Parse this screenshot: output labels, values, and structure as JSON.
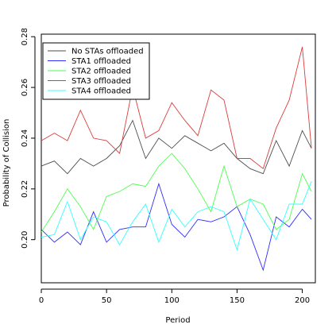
{
  "chart_data": {
    "type": "line",
    "xlabel": "Period",
    "ylabel": "Probability of Collision",
    "xlim": [
      0,
      210
    ],
    "ylim": [
      0.183,
      0.281
    ],
    "xticks": [
      0,
      50,
      100,
      150,
      200
    ],
    "yticks": [
      0.2,
      0.22,
      0.24,
      0.26,
      0.28
    ],
    "xtick_labels": [
      "0",
      "50",
      "100",
      "150",
      "200"
    ],
    "ytick_labels": [
      "0.20",
      "0.22",
      "0.24",
      "0.26",
      "0.28"
    ],
    "grid": false,
    "legend_position": "top-left",
    "x": [
      0,
      10,
      20,
      30,
      40,
      50,
      60,
      70,
      80,
      90,
      100,
      110,
      120,
      130,
      140,
      150,
      160,
      170,
      180,
      190,
      200,
      207
    ],
    "series": [
      {
        "name": "No STAs offloaded",
        "color": "#4d4d4d",
        "values": [
          0.229,
          0.231,
          0.226,
          0.232,
          0.229,
          0.232,
          0.237,
          0.247,
          0.232,
          0.24,
          0.236,
          0.241,
          0.238,
          0.235,
          0.238,
          0.232,
          0.228,
          0.226,
          0.239,
          0.229,
          0.243,
          0.236
        ]
      },
      {
        "name": "STA1 offloaded",
        "color": "#2d2dff",
        "values": [
          0.204,
          0.199,
          0.203,
          0.198,
          0.211,
          0.199,
          0.204,
          0.205,
          0.205,
          0.222,
          0.206,
          0.201,
          0.208,
          0.207,
          0.209,
          0.213,
          0.202,
          0.188,
          0.209,
          0.205,
          0.212,
          0.208
        ]
      },
      {
        "name": "STA2 offloaded",
        "color": "#4dff4d",
        "values": [
          0.203,
          0.211,
          0.22,
          0.213,
          0.204,
          0.217,
          0.219,
          0.222,
          0.221,
          0.229,
          0.234,
          0.228,
          0.22,
          0.211,
          0.229,
          0.213,
          0.216,
          0.214,
          0.204,
          0.208,
          0.226,
          0.219
        ]
      },
      {
        "name": "STA3 offloaded",
        "color": "#dd3b3b",
        "values": [
          0.239,
          0.242,
          0.239,
          0.251,
          0.24,
          0.239,
          0.234,
          0.26,
          0.24,
          0.243,
          0.254,
          0.247,
          0.241,
          0.259,
          0.255,
          0.232,
          0.232,
          0.228,
          0.244,
          0.255,
          0.276,
          0.236
        ]
      },
      {
        "name": "STA4 offloaded",
        "color": "#33ffff",
        "values": [
          0.201,
          0.202,
          0.215,
          0.2,
          0.209,
          0.207,
          0.198,
          0.207,
          0.214,
          0.199,
          0.212,
          0.205,
          0.211,
          0.213,
          0.211,
          0.196,
          0.216,
          0.208,
          0.2,
          0.214,
          0.214,
          0.223
        ]
      }
    ]
  }
}
